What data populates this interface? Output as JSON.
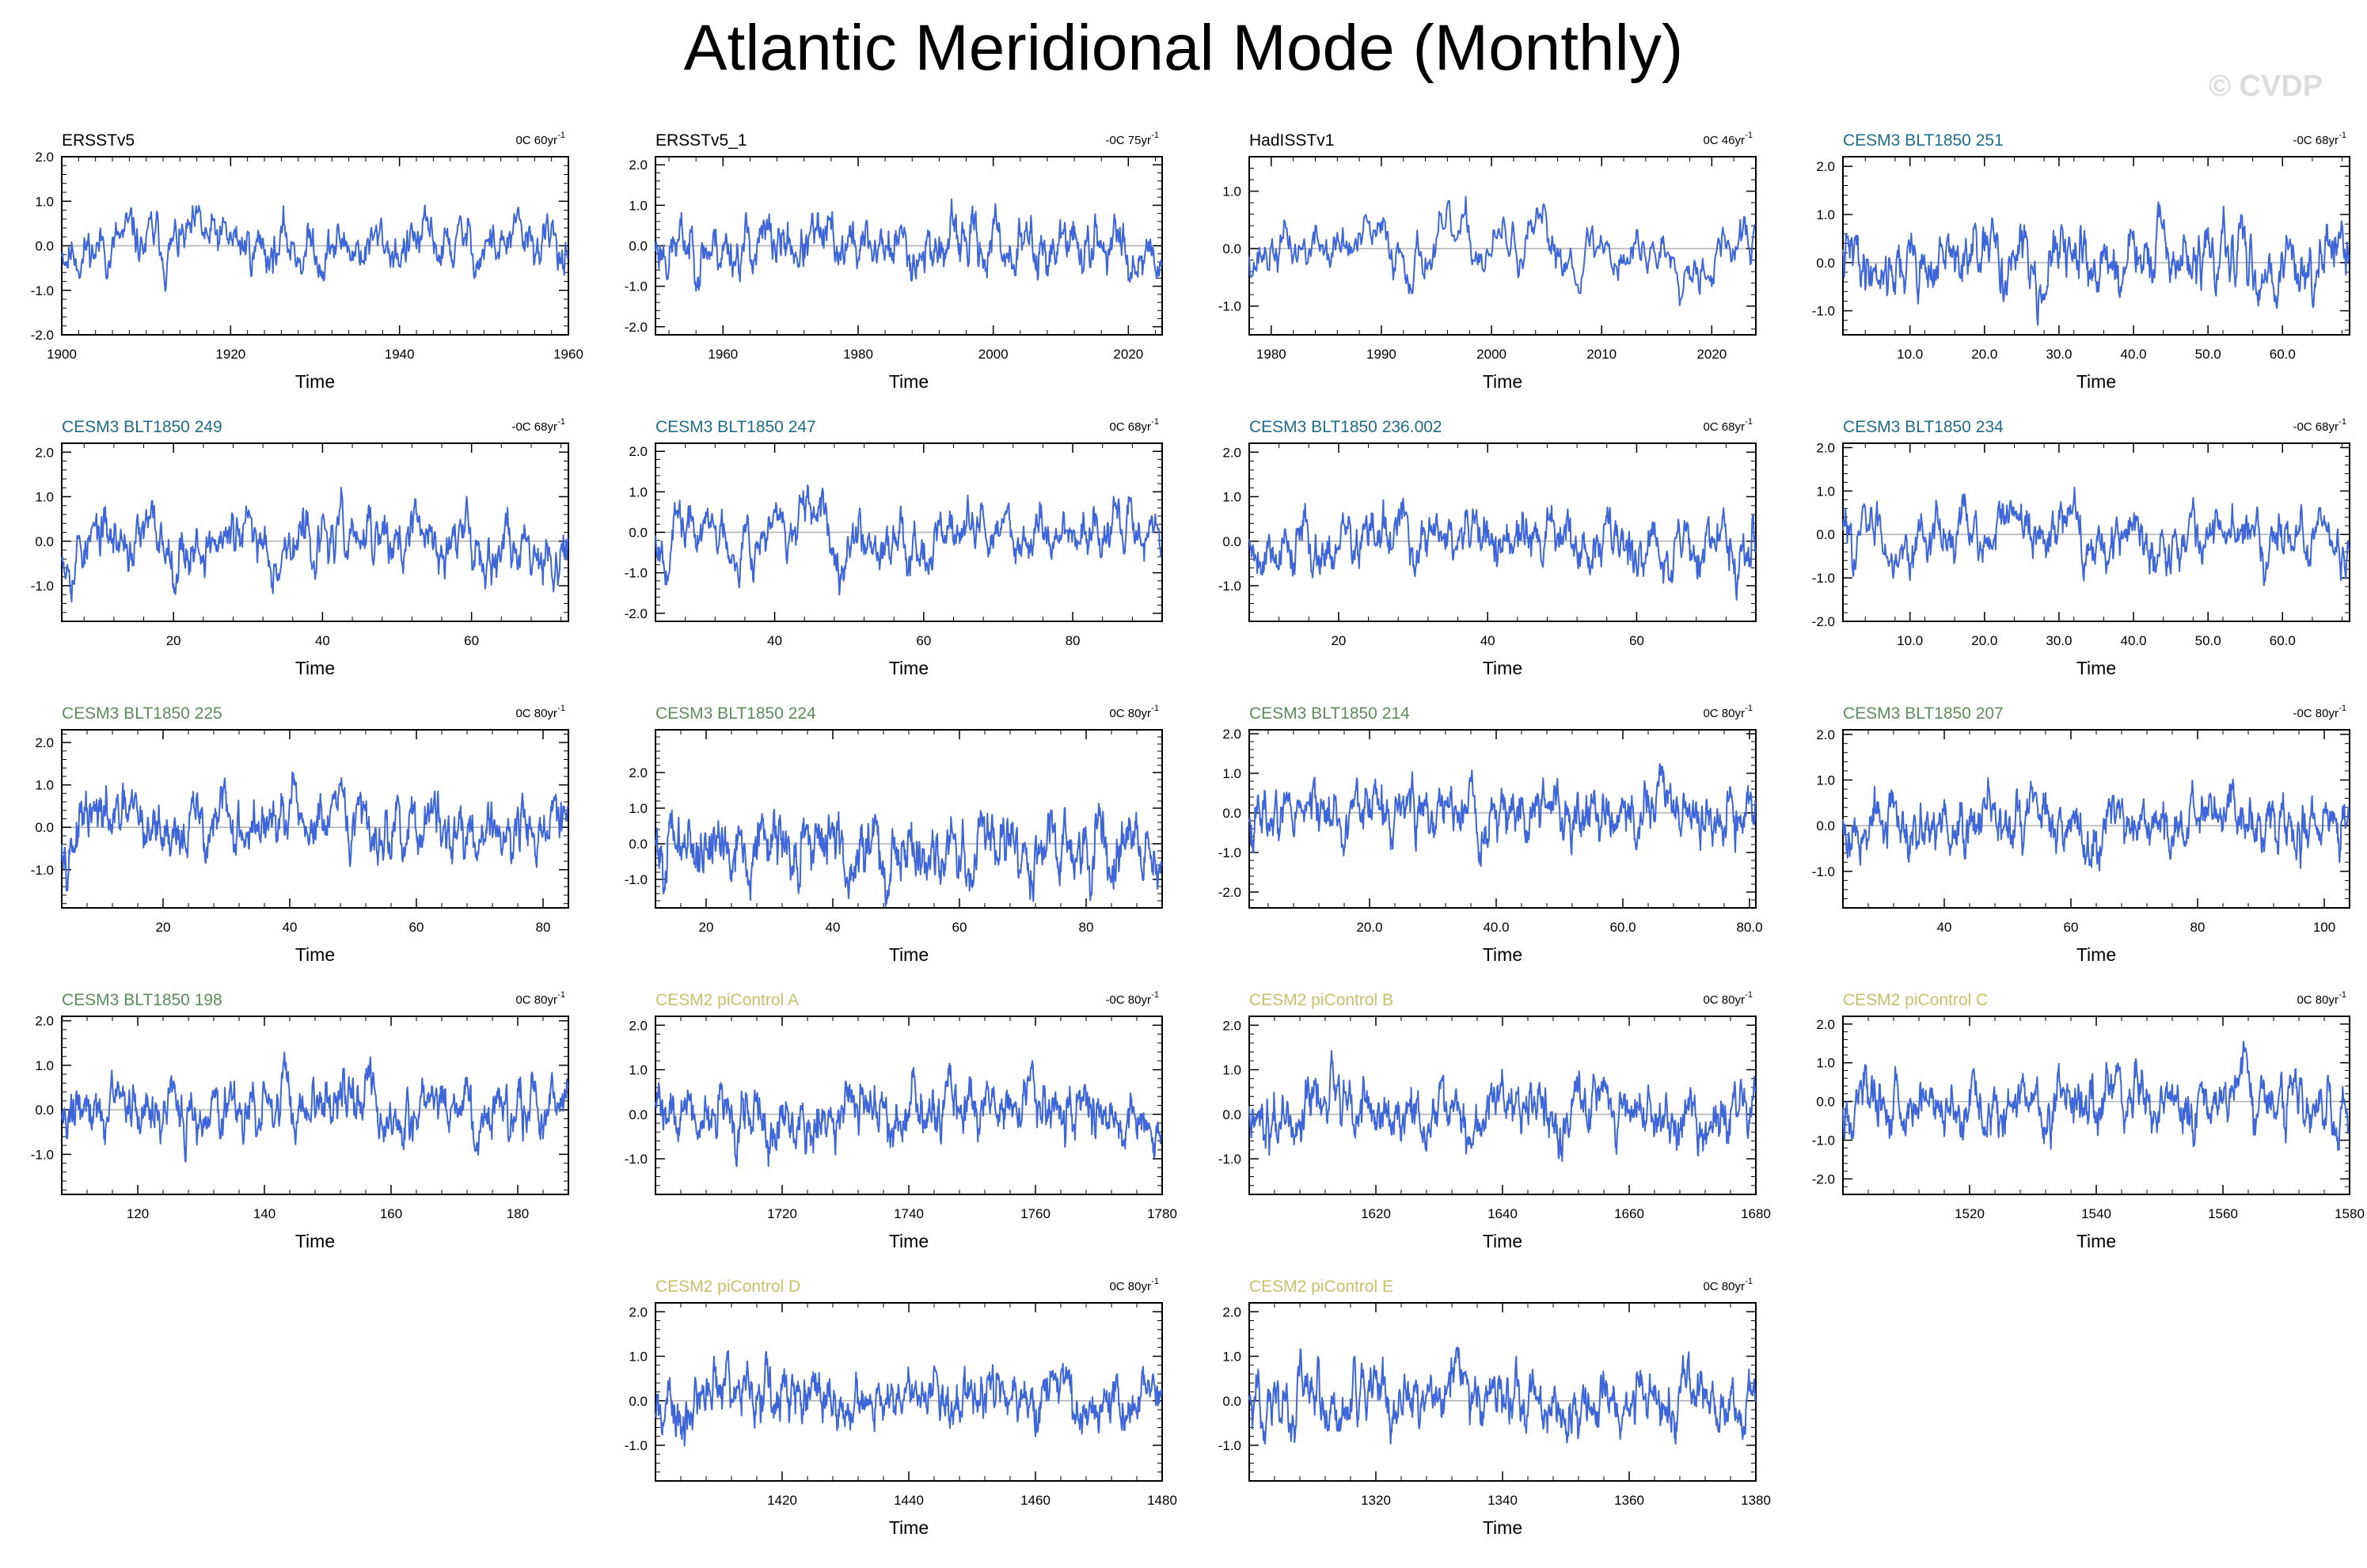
{
  "title": "Atlantic Meridional Mode (Monthly)",
  "watermark": "© CVDP",
  "colors": {
    "line": "#3f66d8",
    "zero_line": "#b0b0b0",
    "obs_label": "#000000",
    "cesm3_blue_label": "#1e6b8c",
    "cesm3_green_label": "#5b8c5a",
    "cesm2_label": "#c8c068"
  },
  "chart_data": [
    {
      "type": "line",
      "name": "ERSSTv5",
      "label_color": "obs_label",
      "stat": "0C 60yr",
      "xlabel": "Time",
      "xlim": [
        1900,
        1960
      ],
      "xticks": [
        1900,
        1920,
        1940,
        1960
      ],
      "xtick_labels": [
        "1900",
        "1920",
        "1940",
        "1960"
      ],
      "ylim": [
        -2.0,
        2.0
      ],
      "yticks": [
        -2.0,
        -1.0,
        0.0,
        1.0,
        2.0
      ],
      "seed": 11
    },
    {
      "type": "line",
      "name": "ERSSTv5_1",
      "label_color": "obs_label",
      "stat": "-0C 75yr",
      "xlabel": "Time",
      "xlim": [
        1950,
        2025
      ],
      "xticks": [
        1960,
        1980,
        2000,
        2020
      ],
      "xtick_labels": [
        "1960",
        "1980",
        "2000",
        "2020"
      ],
      "ylim": [
        -2.2,
        2.2
      ],
      "yticks": [
        -2.0,
        -1.0,
        0.0,
        1.0,
        2.0
      ],
      "seed": 23
    },
    {
      "type": "line",
      "name": "HadISSTv1",
      "label_color": "obs_label",
      "stat": "0C 46yr",
      "xlabel": "Time",
      "xlim": [
        1978,
        2024
      ],
      "xticks": [
        1980,
        1990,
        2000,
        2010,
        2020
      ],
      "xtick_labels": [
        "1980",
        "1990",
        "2000",
        "2010",
        "2020"
      ],
      "ylim": [
        -1.5,
        1.6
      ],
      "yticks": [
        -1.0,
        0.0,
        1.0
      ],
      "seed": 37
    },
    {
      "type": "line",
      "name": "CESM3 BLT1850 251",
      "label_color": "cesm3_blue_label",
      "stat": "-0C 68yr",
      "xlabel": "Time",
      "xlim": [
        1,
        69
      ],
      "xticks": [
        10,
        20,
        30,
        40,
        50,
        60
      ],
      "xtick_labels": [
        "10.0",
        "20.0",
        "30.0",
        "40.0",
        "50.0",
        "60.0"
      ],
      "ylim": [
        -1.5,
        2.2
      ],
      "yticks": [
        -1.0,
        0.0,
        1.0,
        2.0
      ],
      "seed": 41
    },
    {
      "type": "line",
      "name": "CESM3 BLT1850 249",
      "label_color": "cesm3_blue_label",
      "stat": "-0C 68yr",
      "xlabel": "Time",
      "xlim": [
        5,
        73
      ],
      "xticks": [
        20,
        40,
        60
      ],
      "xtick_labels": [
        "20",
        "40",
        "60"
      ],
      "ylim": [
        -1.8,
        2.2
      ],
      "yticks": [
        -1.0,
        0.0,
        1.0,
        2.0
      ],
      "seed": 53
    },
    {
      "type": "line",
      "name": "CESM3 BLT1850 247",
      "label_color": "cesm3_blue_label",
      "stat": "0C 68yr",
      "xlabel": "Time",
      "xlim": [
        24,
        92
      ],
      "xticks": [
        40,
        60,
        80
      ],
      "xtick_labels": [
        "40",
        "60",
        "80"
      ],
      "ylim": [
        -2.2,
        2.2
      ],
      "yticks": [
        -2.0,
        -1.0,
        0.0,
        1.0,
        2.0
      ],
      "seed": 67
    },
    {
      "type": "line",
      "name": "CESM3 BLT1850 236.002",
      "label_color": "cesm3_blue_label",
      "stat": "0C 68yr",
      "xlabel": "Time",
      "xlim": [
        8,
        76
      ],
      "xticks": [
        20,
        40,
        60
      ],
      "xtick_labels": [
        "20",
        "40",
        "60"
      ],
      "ylim": [
        -1.8,
        2.2
      ],
      "yticks": [
        -1.0,
        0.0,
        1.0,
        2.0
      ],
      "seed": 79
    },
    {
      "type": "line",
      "name": "CESM3 BLT1850 234",
      "label_color": "cesm3_blue_label",
      "stat": "-0C 68yr",
      "xlabel": "Time",
      "xlim": [
        1,
        69
      ],
      "xticks": [
        10,
        20,
        30,
        40,
        50,
        60
      ],
      "xtick_labels": [
        "10.0",
        "20.0",
        "30.0",
        "40.0",
        "50.0",
        "60.0"
      ],
      "ylim": [
        -2.0,
        2.1
      ],
      "yticks": [
        -2.0,
        -1.0,
        0.0,
        1.0,
        2.0
      ],
      "seed": 83
    },
    {
      "type": "line",
      "name": "CESM3 BLT1850 225",
      "label_color": "cesm3_green_label",
      "stat": "0C 80yr",
      "xlabel": "Time",
      "xlim": [
        4,
        84
      ],
      "xticks": [
        20,
        40,
        60,
        80
      ],
      "xtick_labels": [
        "20",
        "40",
        "60",
        "80"
      ],
      "ylim": [
        -1.9,
        2.3
      ],
      "yticks": [
        -1.0,
        0.0,
        1.0,
        2.0
      ],
      "seed": 97
    },
    {
      "type": "line",
      "name": "CESM3 BLT1850 224",
      "label_color": "cesm3_green_label",
      "stat": "0C 80yr",
      "xlabel": "Time",
      "xlim": [
        12,
        92
      ],
      "xticks": [
        20,
        40,
        60,
        80
      ],
      "xtick_labels": [
        "20",
        "40",
        "60",
        "80"
      ],
      "ylim": [
        -1.8,
        3.2
      ],
      "yticks": [
        -1.0,
        0.0,
        1.0,
        2.0
      ],
      "seed": 101
    },
    {
      "type": "line",
      "name": "CESM3 BLT1850 214",
      "label_color": "cesm3_green_label",
      "stat": "0C 80yr",
      "xlabel": "Time",
      "xlim": [
        1,
        81
      ],
      "xticks": [
        20,
        40,
        60,
        80
      ],
      "xtick_labels": [
        "20.0",
        "40.0",
        "60.0",
        "80.0"
      ],
      "ylim": [
        -2.4,
        2.1
      ],
      "yticks": [
        -2.0,
        -1.0,
        0.0,
        1.0,
        2.0
      ],
      "seed": 113
    },
    {
      "type": "line",
      "name": "CESM3 BLT1850 207",
      "label_color": "cesm3_green_label",
      "stat": "-0C 80yr",
      "xlabel": "Time",
      "xlim": [
        24,
        104
      ],
      "xticks": [
        40,
        60,
        80,
        100
      ],
      "xtick_labels": [
        "40",
        "60",
        "80",
        "100"
      ],
      "ylim": [
        -1.8,
        2.1
      ],
      "yticks": [
        -1.0,
        0.0,
        1.0,
        2.0
      ],
      "seed": 127
    },
    {
      "type": "line",
      "name": "CESM3 BLT1850 198",
      "label_color": "cesm3_green_label",
      "stat": "0C 80yr",
      "xlabel": "Time",
      "xlim": [
        108,
        188
      ],
      "xticks": [
        120,
        140,
        160,
        180
      ],
      "xtick_labels": [
        "120",
        "140",
        "160",
        "180"
      ],
      "ylim": [
        -1.9,
        2.1
      ],
      "yticks": [
        -1.0,
        0.0,
        1.0,
        2.0
      ],
      "seed": 131
    },
    {
      "type": "line",
      "name": "CESM2 piControl A",
      "label_color": "cesm2_label",
      "stat": "-0C 80yr",
      "xlabel": "Time",
      "xlim": [
        1700,
        1780
      ],
      "xticks": [
        1720,
        1740,
        1760,
        1780
      ],
      "xtick_labels": [
        "1720",
        "1740",
        "1760",
        "1780"
      ],
      "ylim": [
        -1.8,
        2.2
      ],
      "yticks": [
        -1.0,
        0.0,
        1.0,
        2.0
      ],
      "seed": 139
    },
    {
      "type": "line",
      "name": "CESM2 piControl B",
      "label_color": "cesm2_label",
      "stat": "0C 80yr",
      "xlabel": "Time",
      "xlim": [
        1600,
        1680
      ],
      "xticks": [
        1620,
        1640,
        1660,
        1680
      ],
      "xtick_labels": [
        "1620",
        "1640",
        "1660",
        "1680"
      ],
      "ylim": [
        -1.8,
        2.2
      ],
      "yticks": [
        -1.0,
        0.0,
        1.0,
        2.0
      ],
      "seed": 149
    },
    {
      "type": "line",
      "name": "CESM2 piControl C",
      "label_color": "cesm2_label",
      "stat": "0C 80yr",
      "xlabel": "Time",
      "xlim": [
        1500,
        1580
      ],
      "xticks": [
        1520,
        1540,
        1560,
        1580
      ],
      "xtick_labels": [
        "1520",
        "1540",
        "1560",
        "1580"
      ],
      "ylim": [
        -2.4,
        2.2
      ],
      "yticks": [
        -2.0,
        -1.0,
        0.0,
        1.0,
        2.0
      ],
      "seed": 157
    },
    {
      "type": "line",
      "name": "CESM2 piControl D",
      "label_color": "cesm2_label",
      "stat": "0C 80yr",
      "xlabel": "Time",
      "xlim": [
        1400,
        1480
      ],
      "xticks": [
        1420,
        1440,
        1460,
        1480
      ],
      "xtick_labels": [
        "1420",
        "1440",
        "1460",
        "1480"
      ],
      "ylim": [
        -1.8,
        2.2
      ],
      "yticks": [
        -1.0,
        0.0,
        1.0,
        2.0
      ],
      "seed": 163
    },
    {
      "type": "line",
      "name": "CESM2 piControl E",
      "label_color": "cesm2_label",
      "stat": "0C 80yr",
      "xlabel": "Time",
      "xlim": [
        1300,
        1380
      ],
      "xticks": [
        1320,
        1340,
        1360,
        1380
      ],
      "xtick_labels": [
        "1320",
        "1340",
        "1360",
        "1380"
      ],
      "ylim": [
        -1.8,
        2.2
      ],
      "yticks": [
        -1.0,
        0.0,
        1.0,
        2.0
      ],
      "seed": 173
    }
  ]
}
